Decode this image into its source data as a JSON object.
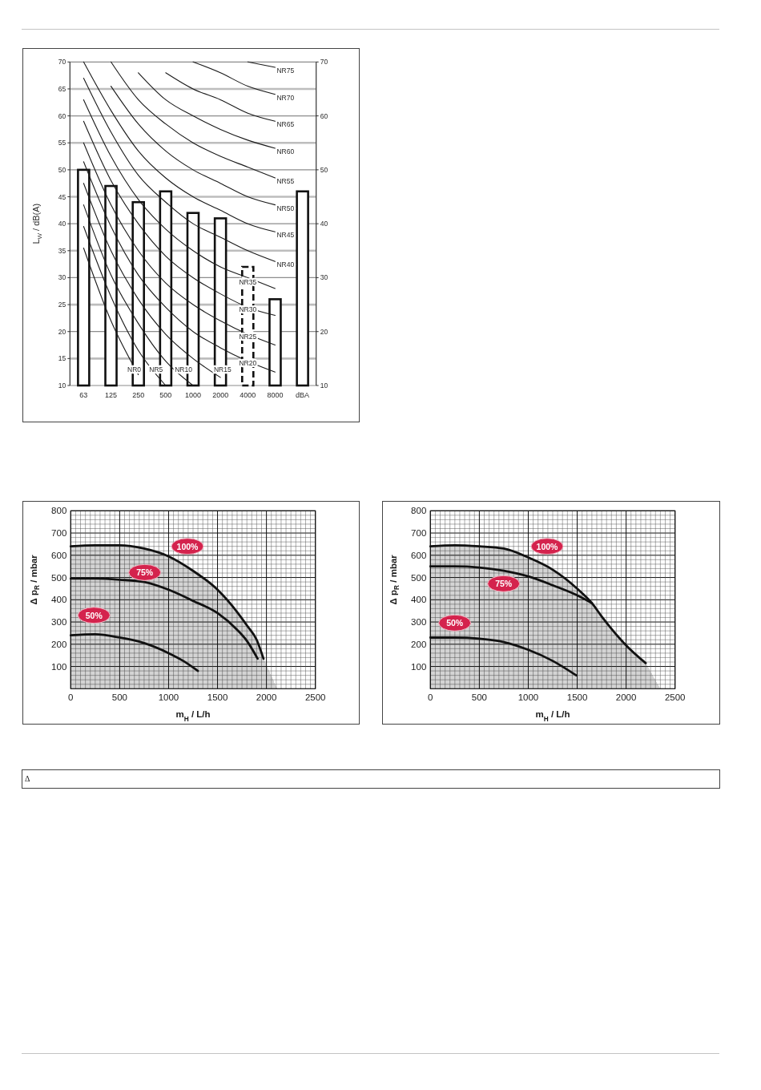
{
  "chart_data": [
    {
      "type": "bar",
      "ylabel": "L$_{W}$ / dB(A)",
      "categories": [
        "63",
        "125",
        "250",
        "500",
        "1000",
        "2000",
        "4000",
        "8000",
        "dBA"
      ],
      "stacked": true,
      "ylim": [
        10,
        70
      ],
      "yticks": [
        10,
        15,
        20,
        25,
        30,
        35,
        40,
        45,
        50,
        55,
        60,
        65,
        70
      ],
      "y2lim": [
        10,
        70
      ],
      "y2ticks": [
        10,
        20,
        30,
        40,
        50,
        60,
        70
      ],
      "grid": "y",
      "series": [
        {
          "type": "bar",
          "color": "#ffffff",
          "values": [
            50,
            47,
            44,
            46,
            42,
            41,
            null,
            26,
            46
          ]
        },
        {
          "type": "bar",
          "color": "#ffffff",
          "line_style": "dashed",
          "values": [
            null,
            null,
            null,
            null,
            null,
            null,
            32,
            null,
            null
          ]
        },
        {
          "type": "line",
          "name": "NR0",
          "color": "#1a1a1a",
          "values": [
            35.5,
            22,
            12,
            null,
            null,
            null,
            null,
            null,
            null
          ]
        },
        {
          "type": "line",
          "name": "NR5",
          "color": "#1a1a1a",
          "values": [
            39.5,
            26.5,
            16.5,
            10,
            null,
            null,
            null,
            null,
            null
          ]
        },
        {
          "type": "line",
          "name": "NR10",
          "color": "#1a1a1a",
          "values": [
            43.5,
            30.5,
            21.5,
            14.5,
            10,
            null,
            null,
            null,
            null
          ]
        },
        {
          "type": "line",
          "name": "NR15",
          "color": "#1a1a1a",
          "values": [
            47.5,
            35,
            26,
            19.5,
            15,
            11.5,
            null,
            null,
            null
          ]
        },
        {
          "type": "line",
          "name": "NR20",
          "color": "#1a1a1a",
          "values": [
            51.5,
            39.5,
            30.5,
            24.5,
            20,
            17,
            14.5,
            12.5,
            null
          ]
        },
        {
          "type": "line",
          "name": "NR25",
          "color": "#1a1a1a",
          "values": [
            55,
            43.5,
            35,
            29,
            25,
            22,
            19.5,
            17.5,
            null
          ]
        },
        {
          "type": "line",
          "name": "NR30",
          "color": "#1a1a1a",
          "values": [
            59,
            48,
            40,
            34,
            30,
            27,
            24.5,
            23,
            null
          ]
        },
        {
          "type": "line",
          "name": "NR35",
          "color": "#1a1a1a",
          "values": [
            63,
            52.5,
            44.5,
            39,
            35,
            32,
            30,
            28,
            null
          ]
        },
        {
          "type": "line",
          "name": "NR40",
          "color": "#1a1a1a",
          "values": [
            67,
            57,
            49,
            44,
            40,
            37.5,
            35,
            33,
            null
          ]
        },
        {
          "type": "line",
          "name": "NR45",
          "color": "#1a1a1a",
          "values": [
            70,
            61,
            53.5,
            48.5,
            45,
            42.5,
            40,
            38.5,
            null
          ]
        },
        {
          "type": "line",
          "name": "NR50",
          "color": "#1a1a1a",
          "values": [
            null,
            65.5,
            58.5,
            53.5,
            50,
            47.5,
            45,
            43.5,
            null
          ]
        },
        {
          "type": "line",
          "name": "NR55",
          "color": "#1a1a1a",
          "values": [
            null,
            70,
            63,
            58.5,
            55,
            52.5,
            50.5,
            48.5,
            null
          ]
        },
        {
          "type": "line",
          "name": "NR60",
          "color": "#1a1a1a",
          "values": [
            null,
            null,
            68,
            63,
            60,
            57.5,
            55.5,
            54,
            null
          ]
        },
        {
          "type": "line",
          "name": "NR65",
          "color": "#1a1a1a",
          "values": [
            null,
            null,
            null,
            68,
            65,
            63,
            60.5,
            59,
            null
          ]
        },
        {
          "type": "line",
          "name": "NR70",
          "color": "#1a1a1a",
          "values": [
            null,
            null,
            null,
            null,
            70,
            68,
            65.5,
            64,
            null
          ]
        },
        {
          "type": "line",
          "name": "NR75",
          "color": "#1a1a1a",
          "values": [
            null,
            null,
            null,
            null,
            null,
            null,
            70,
            69,
            null
          ]
        }
      ]
    },
    {
      "type": "line",
      "xlabel": "m$_{H}$ / L/h",
      "ylabel": "Δ p$_{R}$ / mbar",
      "xlim": [
        0,
        2500
      ],
      "ylim": [
        0,
        800
      ],
      "grid": true,
      "xticks": [
        0,
        {
          "value": 50,
          "label": null
        },
        {
          "value": 100,
          "label": null
        },
        {
          "value": 150,
          "label": null
        },
        {
          "value": 200,
          "label": null
        },
        {
          "value": 250,
          "label": null
        },
        {
          "value": 300,
          "label": null
        },
        {
          "value": 350,
          "label": null
        },
        {
          "value": 400,
          "label": null
        },
        {
          "value": 450,
          "label": null
        },
        500,
        {
          "value": 550,
          "label": null
        },
        {
          "value": 600,
          "label": null
        },
        {
          "value": 650,
          "label": null
        },
        {
          "value": 700,
          "label": null
        },
        {
          "value": 750,
          "label": null
        },
        {
          "value": 800,
          "label": null
        },
        {
          "value": 850,
          "label": null
        },
        {
          "value": 900,
          "label": null
        },
        {
          "value": 950,
          "label": null
        },
        1000,
        {
          "value": 1050,
          "label": null
        },
        {
          "value": 1100,
          "label": null
        },
        {
          "value": 1150,
          "label": null
        },
        {
          "value": 1200,
          "label": null
        },
        {
          "value": 1250,
          "label": null
        },
        {
          "value": 1300,
          "label": null
        },
        {
          "value": 1350,
          "label": null
        },
        {
          "value": 1400,
          "label": null
        },
        {
          "value": 1450,
          "label": null
        },
        1500,
        {
          "value": 1550,
          "label": null
        },
        {
          "value": 1600,
          "label": null
        },
        {
          "value": 1650,
          "label": null
        },
        {
          "value": 1700,
          "label": null
        },
        {
          "value": 1750,
          "label": null
        },
        {
          "value": 1800,
          "label": null
        },
        {
          "value": 1850,
          "label": null
        },
        {
          "value": 1900,
          "label": null
        },
        {
          "value": 1950,
          "label": null
        },
        2000,
        {
          "value": 2050,
          "label": null
        },
        {
          "value": 2100,
          "label": null
        },
        {
          "value": 2150,
          "label": null
        },
        {
          "value": 2200,
          "label": null
        },
        {
          "value": 2250,
          "label": null
        },
        {
          "value": 2300,
          "label": null
        },
        {
          "value": 2350,
          "label": null
        },
        {
          "value": 2400,
          "label": null
        },
        {
          "value": 2450,
          "label": null
        },
        2500
      ],
      "yticks": [
        {
          "value": 0,
          "label": null
        },
        {
          "value": 20,
          "label": null
        },
        {
          "value": 40,
          "label": null
        },
        {
          "value": 60,
          "label": null
        },
        {
          "value": 80,
          "label": null
        },
        100,
        {
          "value": 120,
          "label": null
        },
        {
          "value": 140,
          "label": null
        },
        {
          "value": 160,
          "label": null
        },
        {
          "value": 180,
          "label": null
        },
        200,
        {
          "value": 220,
          "label": null
        },
        {
          "value": 240,
          "label": null
        },
        {
          "value": 260,
          "label": null
        },
        {
          "value": 280,
          "label": null
        },
        300,
        {
          "value": 320,
          "label": null
        },
        {
          "value": 340,
          "label": null
        },
        {
          "value": 360,
          "label": null
        },
        {
          "value": 380,
          "label": null
        },
        400,
        {
          "value": 420,
          "label": null
        },
        {
          "value": 440,
          "label": null
        },
        {
          "value": 460,
          "label": null
        },
        {
          "value": 480,
          "label": null
        },
        500,
        {
          "value": 520,
          "label": null
        },
        {
          "value": 540,
          "label": null
        },
        {
          "value": 560,
          "label": null
        },
        {
          "value": 580,
          "label": null
        },
        600,
        {
          "value": 620,
          "label": null
        },
        {
          "value": 640,
          "label": null
        },
        {
          "value": 660,
          "label": null
        },
        {
          "value": 680,
          "label": null
        },
        700,
        {
          "value": 720,
          "label": null
        },
        {
          "value": 740,
          "label": null
        },
        {
          "value": 760,
          "label": null
        },
        {
          "value": 780,
          "label": null
        },
        800
      ],
      "series": [
        {
          "type": "area",
          "name": "100%",
          "color": "#111111",
          "line_style": "solid",
          "x": [
            0,
            250,
            500,
            750,
            1000,
            1250,
            1500,
            1700,
            1800,
            1900,
            1970
          ],
          "values": [
            640,
            645,
            645,
            630,
            595,
            530,
            445,
            345,
            285,
            220,
            135
          ]
        },
        {
          "name": "75%",
          "color": "#111111",
          "x": [
            0,
            250,
            500,
            750,
            1000,
            1250,
            1500,
            1700,
            1800,
            1910
          ],
          "values": [
            495,
            495,
            490,
            480,
            445,
            395,
            340,
            265,
            215,
            135
          ]
        },
        {
          "name": "50%",
          "color": "#111111",
          "x": [
            0,
            250,
            500,
            750,
            1000,
            1150,
            1300
          ],
          "values": [
            240,
            245,
            230,
            205,
            160,
            125,
            80
          ]
        },
        {
          "type": "area",
          "color": "#d4d4d4",
          "x": [
            1970,
            2110
          ],
          "values": [
            135,
            0
          ]
        }
      ]
    },
    {
      "type": "line",
      "xlabel": "m$_{H}$ / L/h",
      "ylabel": "Δ p$_{R}$ / mbar",
      "xlim": [
        0,
        2500
      ],
      "ylim": [
        0,
        800
      ],
      "grid": true,
      "xticks": [
        0,
        {
          "value": 50,
          "label": null
        },
        {
          "value": 100,
          "label": null
        },
        {
          "value": 150,
          "label": null
        },
        {
          "value": 200,
          "label": null
        },
        {
          "value": 250,
          "label": null
        },
        {
          "value": 300,
          "label": null
        },
        {
          "value": 350,
          "label": null
        },
        {
          "value": 400,
          "label": null
        },
        {
          "value": 450,
          "label": null
        },
        500,
        {
          "value": 550,
          "label": null
        },
        {
          "value": 600,
          "label": null
        },
        {
          "value": 650,
          "label": null
        },
        {
          "value": 700,
          "label": null
        },
        {
          "value": 750,
          "label": null
        },
        {
          "value": 800,
          "label": null
        },
        {
          "value": 850,
          "label": null
        },
        {
          "value": 900,
          "label": null
        },
        {
          "value": 950,
          "label": null
        },
        1000,
        {
          "value": 1050,
          "label": null
        },
        {
          "value": 1100,
          "label": null
        },
        {
          "value": 1150,
          "label": null
        },
        {
          "value": 1200,
          "label": null
        },
        {
          "value": 1250,
          "label": null
        },
        {
          "value": 1300,
          "label": null
        },
        {
          "value": 1350,
          "label": null
        },
        {
          "value": 1400,
          "label": null
        },
        {
          "value": 1450,
          "label": null
        },
        1500,
        {
          "value": 1550,
          "label": null
        },
        {
          "value": 1600,
          "label": null
        },
        {
          "value": 1650,
          "label": null
        },
        {
          "value": 1700,
          "label": null
        },
        {
          "value": 1750,
          "label": null
        },
        {
          "value": 1800,
          "label": null
        },
        {
          "value": 1850,
          "label": null
        },
        {
          "value": 1900,
          "label": null
        },
        {
          "value": 1950,
          "label": null
        },
        2000,
        {
          "value": 2050,
          "label": null
        },
        {
          "value": 2100,
          "label": null
        },
        {
          "value": 2150,
          "label": null
        },
        {
          "value": 2200,
          "label": null
        },
        {
          "value": 2250,
          "label": null
        },
        {
          "value": 2300,
          "label": null
        },
        {
          "value": 2350,
          "label": null
        },
        {
          "value": 2400,
          "label": null
        },
        {
          "value": 2450,
          "label": null
        },
        2500
      ],
      "yticks": [
        {
          "value": 0,
          "label": null
        },
        {
          "value": 20,
          "label": null
        },
        {
          "value": 40,
          "label": null
        },
        {
          "value": 60,
          "label": null
        },
        {
          "value": 80,
          "label": null
        },
        100,
        {
          "value": 120,
          "label": null
        },
        {
          "value": 140,
          "label": null
        },
        {
          "value": 160,
          "label": null
        },
        {
          "value": 180,
          "label": null
        },
        200,
        {
          "value": 220,
          "label": null
        },
        {
          "value": 240,
          "label": null
        },
        {
          "value": 260,
          "label": null
        },
        {
          "value": 280,
          "label": null
        },
        300,
        {
          "value": 320,
          "label": null
        },
        {
          "value": 340,
          "label": null
        },
        {
          "value": 360,
          "label": null
        },
        {
          "value": 380,
          "label": null
        },
        400,
        {
          "value": 420,
          "label": null
        },
        {
          "value": 440,
          "label": null
        },
        {
          "value": 460,
          "label": null
        },
        {
          "value": 480,
          "label": null
        },
        500,
        {
          "value": 520,
          "label": null
        },
        {
          "value": 540,
          "label": null
        },
        {
          "value": 560,
          "label": null
        },
        {
          "value": 580,
          "label": null
        },
        600,
        {
          "value": 620,
          "label": null
        },
        {
          "value": 640,
          "label": null
        },
        {
          "value": 660,
          "label": null
        },
        {
          "value": 680,
          "label": null
        },
        700,
        {
          "value": 720,
          "label": null
        },
        {
          "value": 740,
          "label": null
        },
        {
          "value": 760,
          "label": null
        },
        {
          "value": 780,
          "label": null
        },
        800
      ],
      "series": [
        {
          "type": "area",
          "name": "100%",
          "color": "#111111",
          "line_style": "solid",
          "x": [
            0,
            250,
            500,
            750,
            1000,
            1250,
            1500,
            1650,
            1750,
            2000,
            2200
          ],
          "values": [
            640,
            645,
            640,
            630,
            590,
            535,
            450,
            385,
            325,
            195,
            115
          ]
        },
        {
          "name": "75%",
          "color": "#111111",
          "x": [
            0,
            250,
            500,
            750,
            1000,
            1250,
            1500,
            1650
          ],
          "values": [
            550,
            550,
            545,
            530,
            505,
            465,
            420,
            385
          ]
        },
        {
          "name": "50%",
          "color": "#111111",
          "x": [
            0,
            250,
            500,
            750,
            1000,
            1250,
            1490
          ],
          "values": [
            230,
            230,
            225,
            210,
            175,
            125,
            60
          ]
        },
        {
          "type": "area",
          "color": "#d4d4d4",
          "x": [
            2200,
            2350
          ],
          "values": [
            115,
            0
          ]
        }
      ]
    },
    {
      "type": "other",
      "annotations": [
        "Δ"
      ]
    }
  ]
}
